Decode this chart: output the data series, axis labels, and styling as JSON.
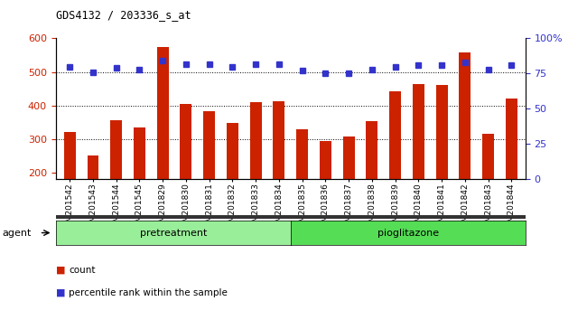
{
  "title": "GDS4132 / 203336_s_at",
  "samples": [
    "GSM201542",
    "GSM201543",
    "GSM201544",
    "GSM201545",
    "GSM201829",
    "GSM201830",
    "GSM201831",
    "GSM201832",
    "GSM201833",
    "GSM201834",
    "GSM201835",
    "GSM201836",
    "GSM201837",
    "GSM201838",
    "GSM201839",
    "GSM201840",
    "GSM201841",
    "GSM201842",
    "GSM201843",
    "GSM201844"
  ],
  "counts": [
    320,
    251,
    357,
    333,
    575,
    404,
    383,
    347,
    411,
    413,
    328,
    293,
    307,
    354,
    441,
    464,
    461,
    558,
    315,
    421
  ],
  "percentile": [
    80,
    76,
    79,
    78,
    84,
    82,
    82,
    80,
    82,
    82,
    77,
    75,
    75,
    78,
    80,
    81,
    81,
    83,
    78,
    81
  ],
  "pretreatment_count": 10,
  "pioglitazone_count": 10,
  "bar_color": "#cc2200",
  "dot_color": "#3333cc",
  "ylim_left": [
    180,
    600
  ],
  "ylim_right": [
    0,
    100
  ],
  "yticks_left": [
    200,
    300,
    400,
    500,
    600
  ],
  "yticks_right": [
    0,
    25,
    50,
    75,
    100
  ],
  "grid_values": [
    300,
    400,
    500
  ],
  "pretreatment_label": "pretreatment",
  "pioglitazone_label": "pioglitazone",
  "agent_label": "agent",
  "legend_count": "count",
  "legend_percentile": "percentile rank within the sample",
  "bg_plot": "#ffffff",
  "bg_pretreatment": "#99ee99",
  "bg_pioglitazone": "#55dd55",
  "bar_bottom": 180,
  "bar_width": 0.5
}
